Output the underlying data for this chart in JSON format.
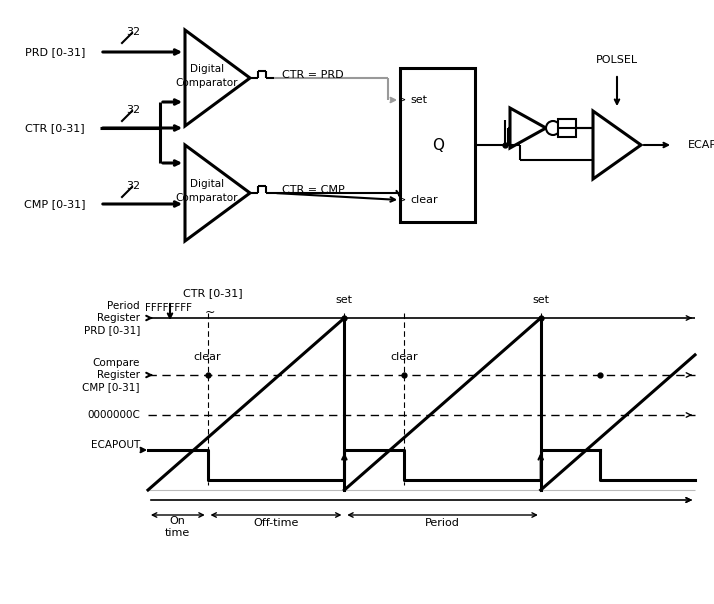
{
  "bg_color": "#ffffff",
  "line_color": "#000000",
  "gray_color": "#999999",
  "block": {
    "prd_label": "PRD [0-31]",
    "ctr_label": "CTR [0-31]",
    "cmp_label": "CMP [0-31]",
    "b32": "32",
    "dc_label1": "Digital",
    "dc_label2": "Comparator",
    "ctr_prd": "CTR = PRD",
    "ctr_cmp": "CTR = CMP",
    "set_lbl": "set",
    "clear_lbl": "clear",
    "Q_lbl": "Q",
    "polsel": "POLSEL",
    "out_lbl": "ECAPxOUT"
  },
  "wf": {
    "ctr_lbl": "CTR [0-31]",
    "fff_lbl": "FFFFFFFF",
    "prd_lbl1": "Period",
    "prd_lbl2": "Register",
    "prd_lbl3": "PRD [0-31]",
    "cmp_lbl1": "Compare",
    "cmp_lbl2": "Register",
    "cmp_lbl3": "CMP [0-31]",
    "hex_lbl": "0000000C",
    "ecap_lbl": "ECAPOUT",
    "set1": "set",
    "set2": "set",
    "clear1": "clear",
    "clear2": "clear",
    "on_time": "On\ntime",
    "off_time": "Off-time",
    "period_lbl": "Period"
  }
}
